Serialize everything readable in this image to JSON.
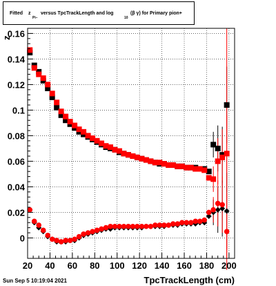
{
  "title": {
    "p1": "Fitted",
    "p2": "z",
    "p3": "Pi−",
    "p4": "versus TpcTrackLength and log",
    "p5": "10",
    "p6": "(β γ) for Primary pion+"
  },
  "timestamp": "Sun Sep  5 10:19:04 2021",
  "chart_data": {
    "type": "scatter",
    "title": "Fitted zPi− versus TpcTrackLength and log10(βγ) for Primary pion+",
    "xlabel": "TpcTrackLength (cm)",
    "ylabel": "z",
    "xlim": [
      20,
      205
    ],
    "ylim": [
      -0.016,
      0.164
    ],
    "xticks": [
      20,
      40,
      60,
      80,
      100,
      120,
      140,
      160,
      180,
      200
    ],
    "yticks": [
      0,
      0.02,
      0.04,
      0.06,
      0.08,
      0.1,
      0.12,
      0.14,
      0.16
    ],
    "ytick_labels": [
      "0",
      "0.02",
      "0.04",
      "0.06",
      "0.08",
      "0.1",
      "0.12",
      "0.14",
      "0.16"
    ],
    "grid": true,
    "series": [
      {
        "color": "#000000",
        "marker": "square",
        "x": [
          22,
          26,
          30,
          34,
          38,
          42,
          46,
          50,
          54,
          58,
          62,
          66,
          70,
          74,
          78,
          82,
          86,
          90,
          94,
          98,
          102,
          106,
          110,
          114,
          118,
          122,
          126,
          130,
          134,
          138,
          142,
          146,
          150,
          154,
          158,
          162,
          166,
          170,
          174,
          178,
          182,
          186,
          190,
          194,
          198
        ],
        "y": [
          0.145,
          0.135,
          0.13,
          0.123,
          0.117,
          0.11,
          0.102,
          0.096,
          0.092,
          0.089,
          0.086,
          0.083,
          0.081,
          0.079,
          0.077,
          0.075,
          0.073,
          0.071,
          0.07,
          0.069,
          0.067,
          0.066,
          0.065,
          0.064,
          0.063,
          0.062,
          0.061,
          0.06,
          0.059,
          0.058,
          0.058,
          0.057,
          0.057,
          0.056,
          0.056,
          0.055,
          0.055,
          0.055,
          0.054,
          0.054,
          0.052,
          0.073,
          0.07,
          0.065,
          0.104
        ]
      },
      {
        "color": "#ff0000",
        "marker": "square",
        "x": [
          22,
          26,
          30,
          34,
          38,
          42,
          46,
          50,
          54,
          58,
          62,
          66,
          70,
          74,
          78,
          82,
          86,
          90,
          94,
          98,
          102,
          106,
          110,
          114,
          118,
          122,
          126,
          130,
          134,
          138,
          142,
          146,
          150,
          154,
          158,
          162,
          166,
          170,
          174,
          178,
          182,
          186,
          190,
          194,
          198
        ],
        "y": [
          0.147,
          0.133,
          0.128,
          0.125,
          0.12,
          0.113,
          0.106,
          0.099,
          0.095,
          0.091,
          0.088,
          0.085,
          0.083,
          0.08,
          0.078,
          0.076,
          0.074,
          0.072,
          0.071,
          0.069,
          0.068,
          0.066,
          0.065,
          0.064,
          0.063,
          0.062,
          0.061,
          0.06,
          0.059,
          0.059,
          0.058,
          0.057,
          0.057,
          0.056,
          0.056,
          0.055,
          0.055,
          0.054,
          0.054,
          0.053,
          0.047,
          0.046,
          0.06,
          0.063,
          0.066
        ]
      },
      {
        "color": "#000000",
        "marker": "diamond",
        "x": [
          22,
          26,
          30,
          34,
          38,
          42,
          46,
          50,
          54,
          58,
          62,
          66,
          70,
          74,
          78,
          82,
          86,
          90,
          94,
          98,
          102,
          106,
          110,
          114,
          118,
          122,
          126,
          130,
          134,
          138,
          142,
          146,
          150,
          154,
          158,
          162,
          166,
          170,
          174,
          178,
          182,
          186,
          190,
          194,
          198
        ],
        "y": [
          0.022,
          0.012,
          0.008,
          0.005,
          0.001,
          -0.001,
          -0.003,
          -0.003,
          -0.003,
          -0.002,
          -0.002,
          0.0,
          0.002,
          0.003,
          0.004,
          0.005,
          0.006,
          0.007,
          0.007,
          0.008,
          0.008,
          0.008,
          0.008,
          0.008,
          0.008,
          0.008,
          0.009,
          0.009,
          0.009,
          0.009,
          0.009,
          0.01,
          0.01,
          0.01,
          0.011,
          0.011,
          0.011,
          0.011,
          0.012,
          0.012,
          0.017,
          0.02,
          0.022,
          0.023,
          0.021
        ]
      },
      {
        "color": "#ff0000",
        "marker": "circle",
        "x": [
          22,
          26,
          30,
          34,
          38,
          42,
          46,
          50,
          54,
          58,
          62,
          66,
          70,
          74,
          78,
          82,
          86,
          90,
          94,
          98,
          102,
          106,
          110,
          114,
          118,
          122,
          126,
          130,
          134,
          138,
          142,
          146,
          150,
          154,
          158,
          162,
          166,
          170,
          174,
          178,
          182,
          186,
          190,
          194,
          198
        ],
        "y": [
          0.022,
          0.013,
          0.01,
          0.006,
          0.002,
          -0.001,
          -0.002,
          -0.003,
          -0.002,
          -0.002,
          -0.001,
          0.001,
          0.003,
          0.004,
          0.005,
          0.006,
          0.007,
          0.008,
          0.009,
          0.009,
          0.009,
          0.009,
          0.009,
          0.009,
          0.009,
          0.009,
          0.009,
          0.009,
          0.01,
          0.01,
          0.01,
          0.01,
          0.011,
          0.011,
          0.012,
          0.012,
          0.012,
          0.013,
          0.013,
          0.014,
          0.02,
          0.022,
          0.027,
          0.026,
          0.005
        ]
      }
    ]
  }
}
